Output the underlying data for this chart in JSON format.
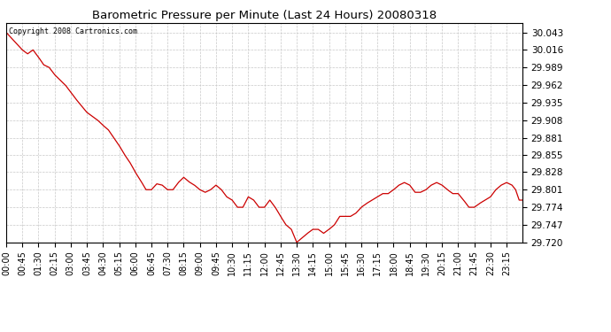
{
  "title": "Barometric Pressure per Minute (Last 24 Hours) 20080318",
  "copyright": "Copyright 2008 Cartronics.com",
  "line_color": "#cc0000",
  "bg_color": "#ffffff",
  "plot_bg_color": "#ffffff",
  "grid_color": "#c8c8c8",
  "ylim": [
    29.72,
    30.057
  ],
  "yticks": [
    29.72,
    29.747,
    29.774,
    29.801,
    29.828,
    29.855,
    29.881,
    29.908,
    29.935,
    29.962,
    29.989,
    30.016,
    30.043
  ],
  "xtick_labels": [
    "00:00",
    "00:45",
    "01:30",
    "02:15",
    "03:00",
    "03:45",
    "04:30",
    "05:15",
    "06:00",
    "06:45",
    "07:30",
    "08:15",
    "09:00",
    "09:45",
    "10:30",
    "11:15",
    "12:00",
    "12:45",
    "13:30",
    "14:15",
    "15:00",
    "15:45",
    "16:30",
    "17:15",
    "18:00",
    "18:45",
    "19:30",
    "20:15",
    "21:00",
    "21:45",
    "22:30",
    "23:15"
  ],
  "key_points": [
    [
      0,
      30.043
    ],
    [
      45,
      30.016
    ],
    [
      60,
      30.01
    ],
    [
      75,
      30.016
    ],
    [
      90,
      30.005
    ],
    [
      105,
      29.993
    ],
    [
      120,
      29.989
    ],
    [
      135,
      29.978
    ],
    [
      150,
      29.97
    ],
    [
      165,
      29.962
    ],
    [
      195,
      29.94
    ],
    [
      225,
      29.92
    ],
    [
      255,
      29.908
    ],
    [
      270,
      29.9
    ],
    [
      285,
      29.893
    ],
    [
      300,
      29.881
    ],
    [
      315,
      29.869
    ],
    [
      330,
      29.855
    ],
    [
      345,
      29.843
    ],
    [
      360,
      29.828
    ],
    [
      375,
      29.815
    ],
    [
      390,
      29.801
    ],
    [
      405,
      29.801
    ],
    [
      420,
      29.81
    ],
    [
      435,
      29.808
    ],
    [
      450,
      29.801
    ],
    [
      465,
      29.801
    ],
    [
      480,
      29.812
    ],
    [
      495,
      29.82
    ],
    [
      510,
      29.813
    ],
    [
      525,
      29.808
    ],
    [
      540,
      29.801
    ],
    [
      555,
      29.797
    ],
    [
      570,
      29.801
    ],
    [
      585,
      29.808
    ],
    [
      600,
      29.801
    ],
    [
      615,
      29.79
    ],
    [
      630,
      29.785
    ],
    [
      645,
      29.774
    ],
    [
      660,
      29.774
    ],
    [
      675,
      29.79
    ],
    [
      690,
      29.785
    ],
    [
      705,
      29.774
    ],
    [
      720,
      29.774
    ],
    [
      735,
      29.785
    ],
    [
      750,
      29.774
    ],
    [
      765,
      29.76
    ],
    [
      780,
      29.747
    ],
    [
      795,
      29.74
    ],
    [
      810,
      29.72
    ],
    [
      840,
      29.734
    ],
    [
      855,
      29.74
    ],
    [
      870,
      29.74
    ],
    [
      885,
      29.734
    ],
    [
      900,
      29.74
    ],
    [
      915,
      29.747
    ],
    [
      930,
      29.76
    ],
    [
      945,
      29.76
    ],
    [
      960,
      29.76
    ],
    [
      975,
      29.765
    ],
    [
      990,
      29.774
    ],
    [
      1005,
      29.78
    ],
    [
      1020,
      29.785
    ],
    [
      1035,
      29.79
    ],
    [
      1050,
      29.795
    ],
    [
      1065,
      29.795
    ],
    [
      1080,
      29.801
    ],
    [
      1095,
      29.808
    ],
    [
      1110,
      29.812
    ],
    [
      1125,
      29.808
    ],
    [
      1140,
      29.797
    ],
    [
      1155,
      29.797
    ],
    [
      1170,
      29.801
    ],
    [
      1185,
      29.808
    ],
    [
      1200,
      29.812
    ],
    [
      1215,
      29.808
    ],
    [
      1230,
      29.801
    ],
    [
      1245,
      29.795
    ],
    [
      1260,
      29.795
    ],
    [
      1275,
      29.785
    ],
    [
      1290,
      29.774
    ],
    [
      1305,
      29.774
    ],
    [
      1320,
      29.78
    ],
    [
      1335,
      29.785
    ],
    [
      1350,
      29.79
    ],
    [
      1365,
      29.801
    ],
    [
      1380,
      29.808
    ],
    [
      1395,
      29.812
    ],
    [
      1410,
      29.808
    ],
    [
      1420,
      29.801
    ],
    [
      1430,
      29.785
    ],
    [
      1439,
      29.785
    ]
  ]
}
